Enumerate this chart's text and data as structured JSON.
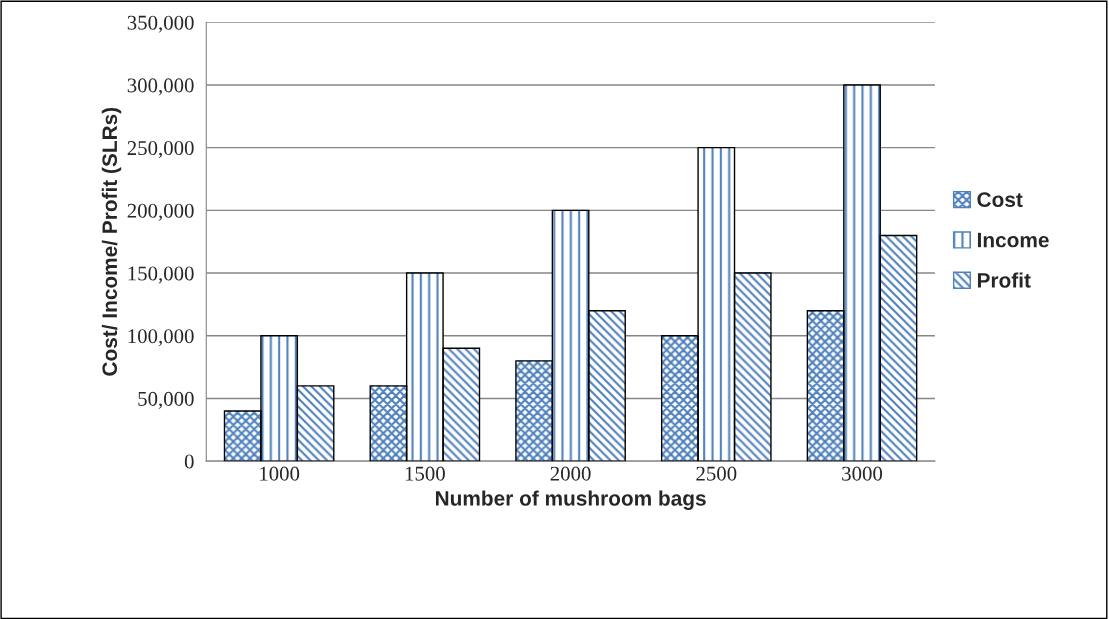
{
  "chart_data": {
    "type": "bar",
    "xlabel": "Number of mushroom bags",
    "ylabel": "Cost/ Income/ Profit (SLRs)",
    "categories": [
      "1000",
      "1500",
      "2000",
      "2500",
      "3000"
    ],
    "series": [
      {
        "name": "Cost",
        "color": "#4f81bd",
        "values": [
          40000,
          60000,
          80000,
          100000,
          120000
        ]
      },
      {
        "name": "Income",
        "color": "#4f81bd",
        "values": [
          100000,
          150000,
          200000,
          250000,
          300000
        ]
      },
      {
        "name": "Profit",
        "color": "#4f81bd",
        "values": [
          60000,
          90000,
          120000,
          150000,
          180000
        ]
      }
    ],
    "ylim": [
      0,
      350000
    ],
    "yticks": [
      {
        "value": 0,
        "label": "0"
      },
      {
        "value": 50000,
        "label": "50,000"
      },
      {
        "value": 100000,
        "label": "100,000"
      },
      {
        "value": 150000,
        "label": "150,000"
      },
      {
        "value": 200000,
        "label": "200,000"
      },
      {
        "value": 250000,
        "label": "250,000"
      },
      {
        "value": 300000,
        "label": "300,000"
      },
      {
        "value": 350000,
        "label": "350,000"
      }
    ],
    "grid": "y",
    "legend": "right"
  }
}
